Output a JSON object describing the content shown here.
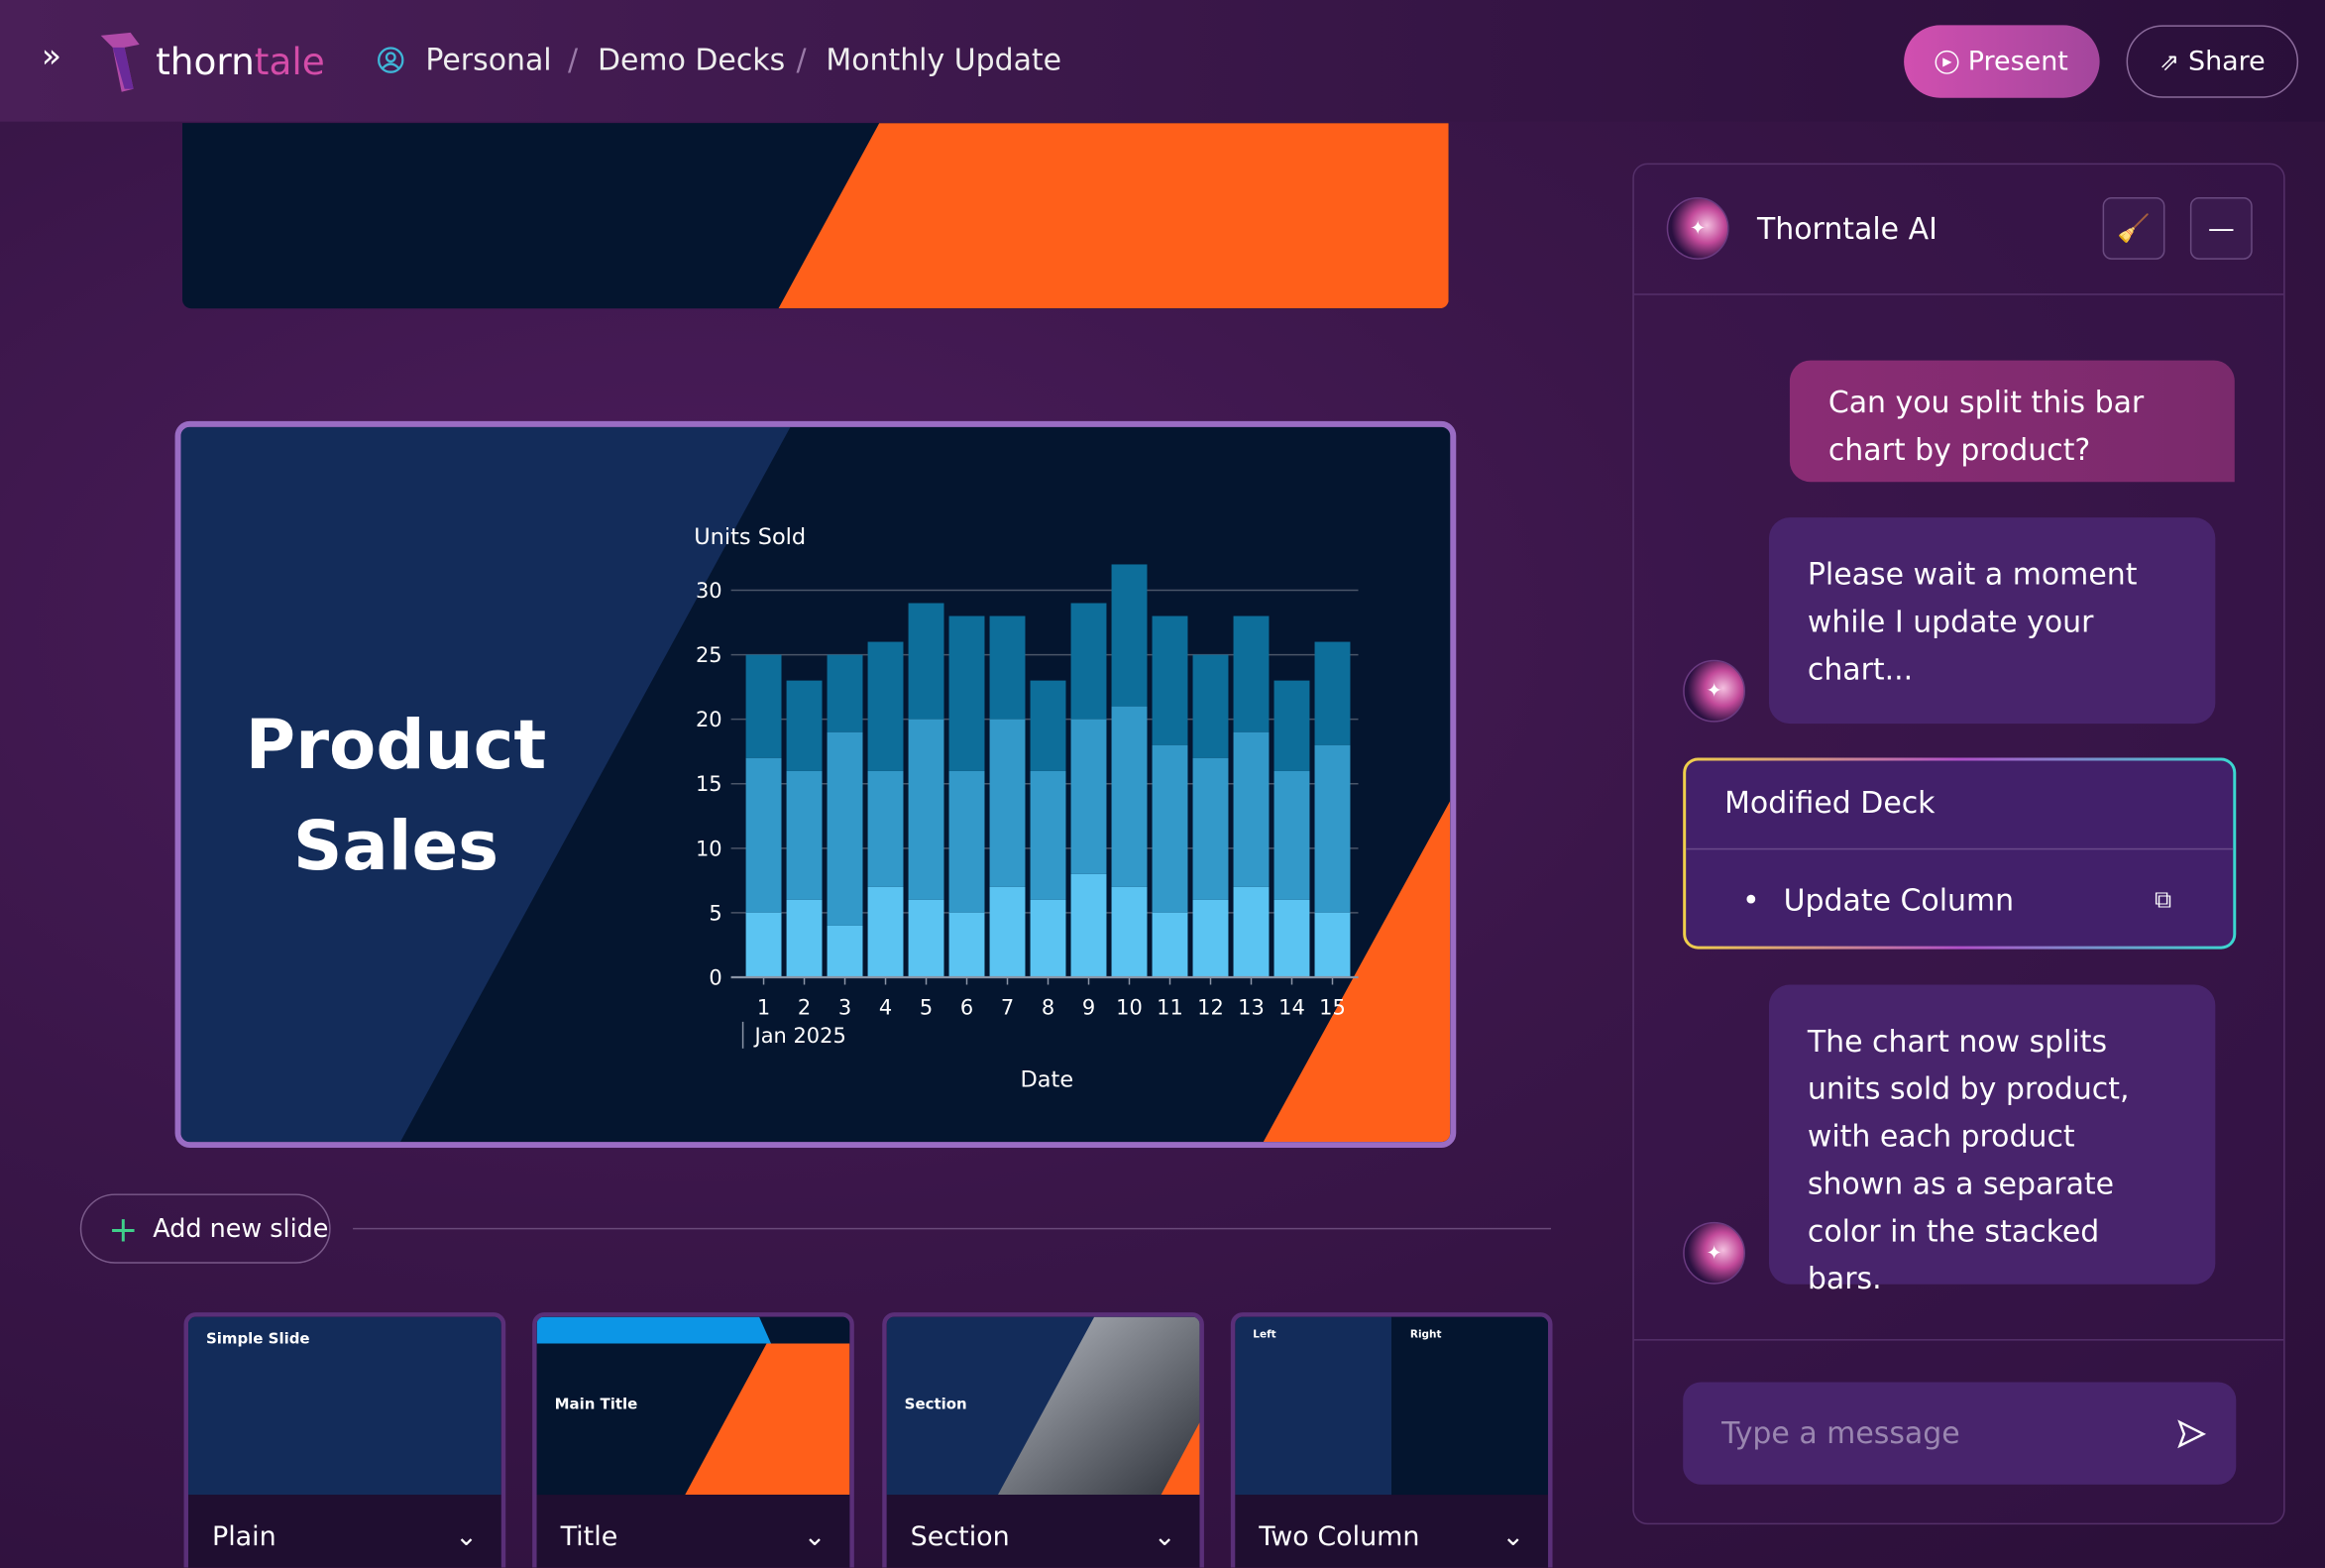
{
  "header": {
    "logo_text_a": "thorn",
    "logo_text_b": "tale",
    "breadcrumb": [
      "Personal",
      "Demo Decks",
      "Monthly Update"
    ],
    "present_label": "Present",
    "share_label": "Share"
  },
  "slide": {
    "title_line1": "Product",
    "title_line2": "Sales"
  },
  "chart_data": {
    "type": "bar",
    "stacked": true,
    "ylabel": "Units Sold",
    "xlabel": "Date",
    "x_sublabel": "Jan 2025",
    "categories": [
      "1",
      "2",
      "3",
      "4",
      "5",
      "6",
      "7",
      "8",
      "9",
      "10",
      "11",
      "12",
      "13",
      "14",
      "15"
    ],
    "ylim": [
      0,
      30
    ],
    "yticks": [
      0,
      5,
      10,
      15,
      20,
      25,
      30
    ],
    "grid": true,
    "series": [
      {
        "color": "#5bc4f2",
        "values": [
          5,
          6,
          4,
          7,
          6,
          5,
          7,
          6,
          8,
          7,
          5,
          6,
          7,
          6,
          5
        ]
      },
      {
        "color": "#3399c9",
        "values": [
          12,
          10,
          15,
          9,
          14,
          11,
          13,
          10,
          12,
          14,
          13,
          11,
          12,
          10,
          13
        ]
      },
      {
        "color": "#0d6e9a",
        "values": [
          8,
          7,
          6,
          10,
          9,
          12,
          8,
          7,
          9,
          11,
          10,
          8,
          9,
          7,
          8
        ]
      }
    ]
  },
  "add_slide_label": "Add new slide",
  "templates": [
    {
      "label": "Plain",
      "preview_text": "Simple Slide"
    },
    {
      "label": "Title",
      "preview_text": "Main Title"
    },
    {
      "label": "Section",
      "preview_text": "Section"
    },
    {
      "label": "Two Column",
      "preview_text_left": "Left",
      "preview_text_right": "Right"
    }
  ],
  "chat": {
    "title": "Thorntale AI",
    "messages": [
      {
        "role": "user",
        "text": "Can you split this bar chart by product?"
      },
      {
        "role": "assistant",
        "text": "Please wait a moment while I update your chart..."
      },
      {
        "role": "assistant",
        "text": "The chart now splits units sold by product, with each product shown as a separate color in the stacked bars."
      }
    ],
    "card": {
      "title": "Modified Deck",
      "item": "Update Column"
    },
    "input_placeholder": "Type a message"
  },
  "colors": {
    "accent": "#d14fb0",
    "orange": "#ff5f1a",
    "navy": "#04152f"
  }
}
